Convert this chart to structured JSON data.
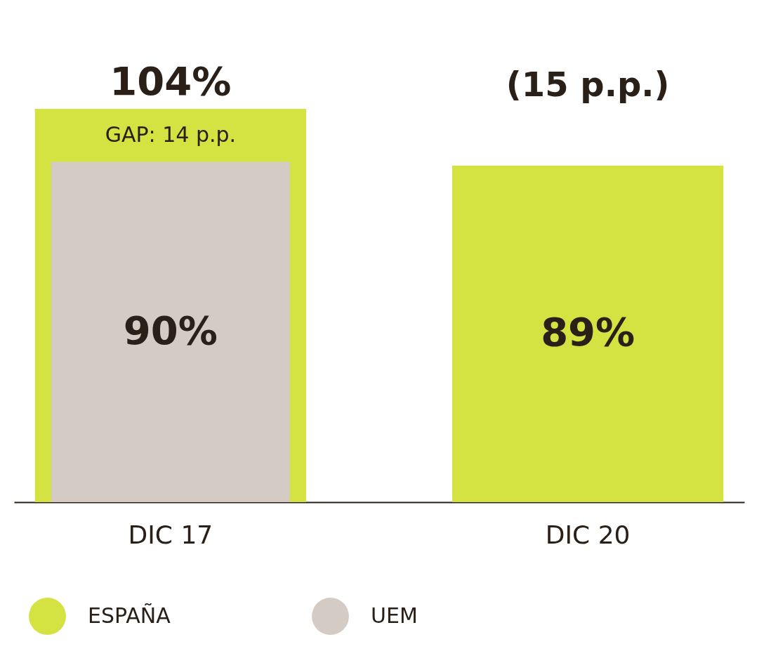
{
  "chart_data": {
    "type": "bar",
    "categories": [
      "DIC 17",
      "DIC 20"
    ],
    "series": [
      {
        "name": "ESPAÑA",
        "color": "#d4e242",
        "values": [
          104,
          89
        ],
        "value_labels": [
          "104%",
          "89%"
        ]
      },
      {
        "name": "UEM",
        "color": "#d5cbc5",
        "values": [
          90,
          null
        ],
        "value_labels": [
          "90%",
          null
        ]
      }
    ],
    "annotations": [
      "GAP: 14 p.p.",
      "(15 p.p.)"
    ],
    "legend": "bottom",
    "tick_labels": "x",
    "grid": false
  }
}
